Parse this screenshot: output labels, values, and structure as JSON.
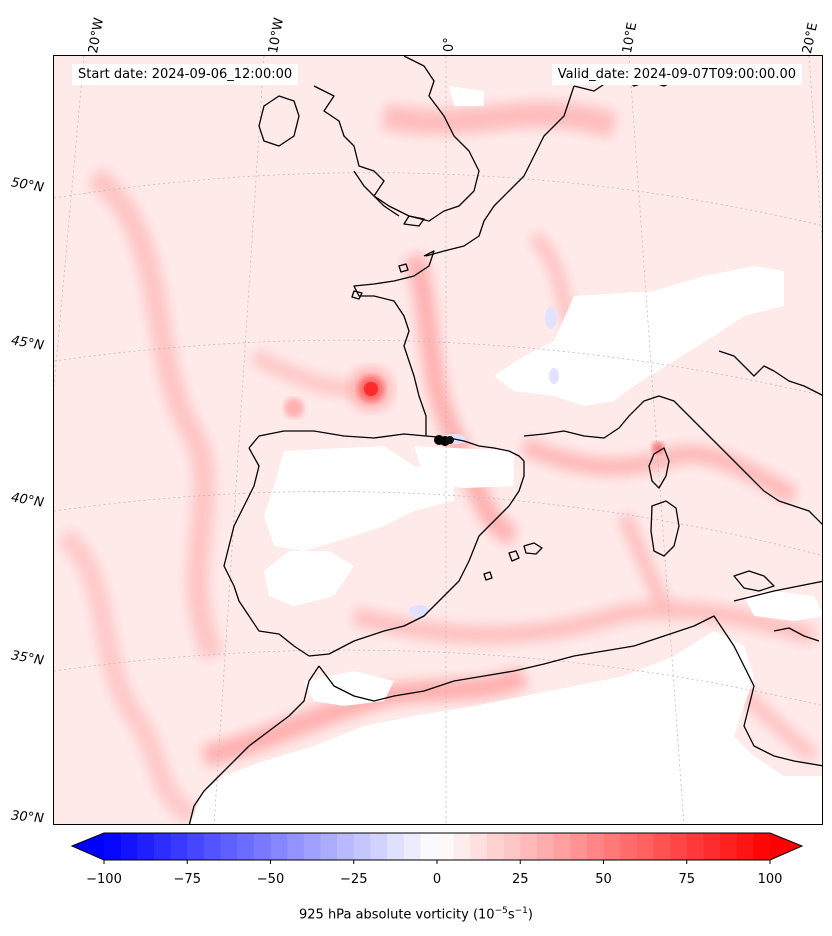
{
  "header": {
    "start_date": "Start date: 2024-09-06_12:00:00",
    "valid_date": "Valid_date: 2024-09-07T09:00:00.00"
  },
  "lon_labels": [
    "20°W",
    "10°W",
    "0°",
    "10°E",
    "20°E"
  ],
  "lat_labels": [
    "50°N",
    "45°N",
    "40°N",
    "35°N",
    "30°N"
  ],
  "colorbar": {
    "ticks": [
      "−100",
      "−75",
      "−50",
      "−25",
      "0",
      "25",
      "50",
      "75",
      "100"
    ],
    "title_prefix": "925 hPa absolute vorticity (10",
    "title_exp1": "−5",
    "title_mid": "s",
    "title_exp2": "−1",
    "title_suffix": ")",
    "range": [
      -100,
      100
    ],
    "neg_color": "#0000ff",
    "pos_color": "#ff0000"
  },
  "map": {
    "field_palette": [
      "#ffe3e3",
      "#ffd0d0",
      "#ffbcbc",
      "#ff9a9a",
      "#ff4040"
    ],
    "marker_color": "#000000"
  }
}
